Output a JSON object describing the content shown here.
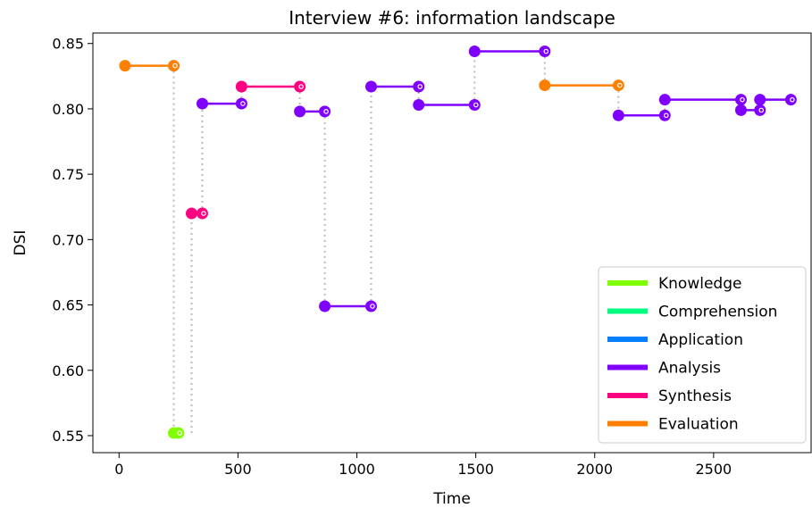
{
  "chart_data": {
    "type": "line",
    "title": "Interview #6: information landscape",
    "xlabel": "Time",
    "ylabel": "DSI",
    "xlim": [
      -110,
      2910
    ],
    "ylim": [
      0.537,
      0.858
    ],
    "xticks": [
      0,
      500,
      1000,
      1500,
      2000,
      2500
    ],
    "yticks": [
      0.55,
      0.6,
      0.65,
      0.7,
      0.75,
      0.8,
      0.85
    ],
    "ytick_labels": [
      "0.55",
      "0.60",
      "0.65",
      "0.70",
      "0.75",
      "0.80",
      "0.85"
    ],
    "grid": false,
    "legend_position": "lower-right",
    "categories": [
      {
        "name": "Knowledge",
        "color": "#80ff00"
      },
      {
        "name": "Comprehension",
        "color": "#00ff80"
      },
      {
        "name": "Application",
        "color": "#0080ff"
      },
      {
        "name": "Analysis",
        "color": "#8000ff"
      },
      {
        "name": "Synthesis",
        "color": "#ff0080"
      },
      {
        "name": "Evaluation",
        "color": "#ff8000"
      }
    ],
    "segments": [
      {
        "category": "Evaluation",
        "x": [
          25,
          230
        ],
        "y": 0.833
      },
      {
        "category": "Knowledge",
        "x": [
          230,
          250
        ],
        "y": 0.552
      },
      {
        "category": "Synthesis",
        "x": [
          305,
          350
        ],
        "y": 0.72
      },
      {
        "category": "Analysis",
        "x": [
          350,
          515
        ],
        "y": 0.804
      },
      {
        "category": "Synthesis",
        "x": [
          515,
          760
        ],
        "y": 0.817
      },
      {
        "category": "Analysis",
        "x": [
          760,
          865
        ],
        "y": 0.798
      },
      {
        "category": "Analysis",
        "x": [
          865,
          1060
        ],
        "y": 0.649
      },
      {
        "category": "Analysis",
        "x": [
          1060,
          1260
        ],
        "y": 0.817
      },
      {
        "category": "Analysis",
        "x": [
          1260,
          1495
        ],
        "y": 0.803
      },
      {
        "category": "Analysis",
        "x": [
          1495,
          1790
        ],
        "y": 0.844
      },
      {
        "category": "Evaluation",
        "x": [
          1790,
          2100
        ],
        "y": 0.818
      },
      {
        "category": "Analysis",
        "x": [
          2100,
          2295
        ],
        "y": 0.795
      },
      {
        "category": "Analysis",
        "x": [
          2295,
          2615
        ],
        "y": 0.807
      },
      {
        "category": "Analysis",
        "x": [
          2615,
          2695
        ],
        "y": 0.799
      },
      {
        "category": "Analysis",
        "x": [
          2695,
          2825
        ],
        "y": 0.807
      }
    ]
  }
}
